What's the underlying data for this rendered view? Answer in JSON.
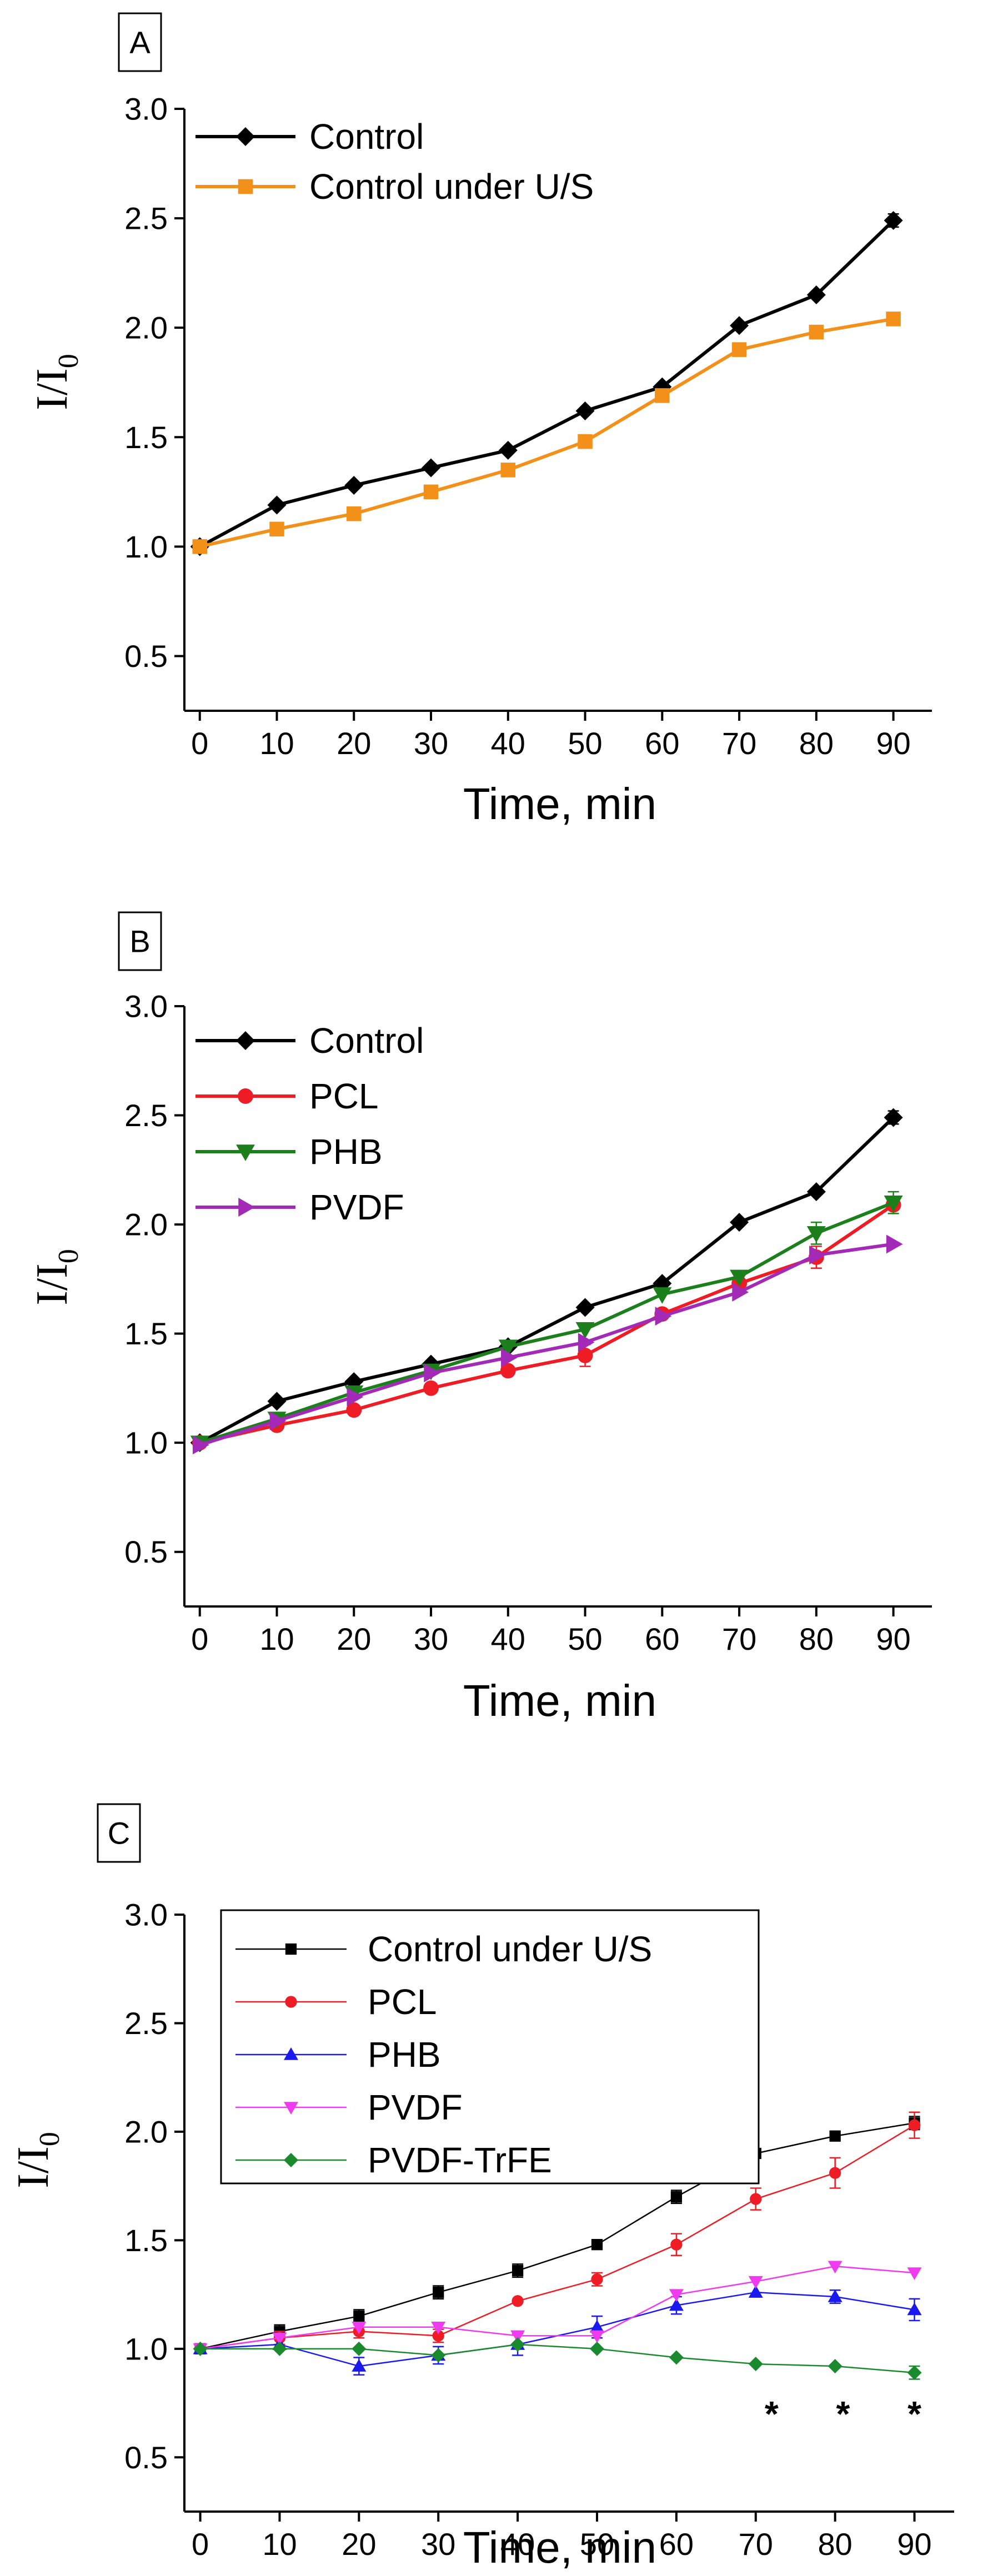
{
  "chart_data": [
    {
      "type": "line",
      "panel_label": "A",
      "xlabel": "Time, min",
      "ylabel": "I/I",
      "ylabel_sub": "0",
      "xlim": [
        -2,
        95
      ],
      "ylim": [
        0.25,
        3.0
      ],
      "xticks": [
        0,
        10,
        20,
        30,
        40,
        50,
        60,
        70,
        80,
        90
      ],
      "yticks": [
        "0.5",
        "1.0",
        "1.5",
        "2.0",
        "2.5",
        "3.0"
      ],
      "legend_position": "top-left",
      "series": [
        {
          "name": "Control",
          "color": "#000000",
          "marker": "diamond",
          "style": "bold",
          "x": [
            0,
            10,
            20,
            30,
            40,
            50,
            60,
            70,
            80,
            90
          ],
          "y": [
            1.0,
            1.19,
            1.28,
            1.36,
            1.44,
            1.62,
            1.73,
            2.01,
            2.15,
            2.49
          ],
          "err": [
            0,
            0,
            0,
            0,
            0,
            0,
            0,
            0,
            0,
            0.03
          ]
        },
        {
          "name": "Control under U/S",
          "color": "#F39019",
          "marker": "square",
          "style": "bold",
          "x": [
            0,
            10,
            20,
            30,
            40,
            50,
            60,
            70,
            80,
            90
          ],
          "y": [
            1.0,
            1.08,
            1.15,
            1.25,
            1.35,
            1.48,
            1.69,
            1.9,
            1.98,
            2.04
          ],
          "err": [
            0,
            0,
            0,
            0,
            0,
            0,
            0,
            0,
            0,
            0
          ]
        }
      ],
      "annotations": []
    },
    {
      "type": "line",
      "panel_label": "B",
      "xlabel": "Time, min",
      "ylabel": "I/I",
      "ylabel_sub": "0",
      "xlim": [
        -2,
        95
      ],
      "ylim": [
        0.25,
        3.0
      ],
      "xticks": [
        0,
        10,
        20,
        30,
        40,
        50,
        60,
        70,
        80,
        90
      ],
      "yticks": [
        "0.5",
        "1.0",
        "1.5",
        "2.0",
        "2.5",
        "3.0"
      ],
      "legend_position": "top-left",
      "series": [
        {
          "name": "Control",
          "color": "#000000",
          "marker": "diamond",
          "style": "bold",
          "x": [
            0,
            10,
            20,
            30,
            40,
            50,
            60,
            70,
            80,
            90
          ],
          "y": [
            1.0,
            1.19,
            1.28,
            1.36,
            1.44,
            1.62,
            1.73,
            2.01,
            2.15,
            2.49
          ],
          "err": [
            0,
            0,
            0,
            0,
            0,
            0,
            0,
            0,
            0,
            0.03
          ]
        },
        {
          "name": "PCL",
          "color": "#EE1C24",
          "marker": "circle",
          "style": "bold",
          "x": [
            0,
            10,
            20,
            30,
            40,
            50,
            60,
            70,
            80,
            90
          ],
          "y": [
            1.0,
            1.08,
            1.15,
            1.25,
            1.33,
            1.4,
            1.59,
            1.73,
            1.85,
            2.09
          ],
          "err": [
            0,
            0,
            0,
            0,
            0,
            0.05,
            0,
            0,
            0.05,
            0
          ]
        },
        {
          "name": "PHB",
          "color": "#1B7F1B",
          "marker": "triangle-down",
          "style": "bold",
          "x": [
            0,
            10,
            20,
            30,
            40,
            50,
            60,
            70,
            80,
            90
          ],
          "y": [
            1.0,
            1.11,
            1.23,
            1.33,
            1.44,
            1.52,
            1.68,
            1.76,
            1.96,
            2.1
          ],
          "err": [
            0,
            0,
            0,
            0,
            0,
            0,
            0,
            0,
            0.05,
            0.05
          ]
        },
        {
          "name": "PVDF",
          "color": "#A22AB7",
          "marker": "triangle-right",
          "style": "bold",
          "x": [
            0,
            10,
            20,
            30,
            40,
            50,
            60,
            70,
            80,
            90
          ],
          "y": [
            0.99,
            1.1,
            1.21,
            1.32,
            1.39,
            1.46,
            1.58,
            1.69,
            1.86,
            1.91
          ],
          "err": [
            0,
            0,
            0,
            0,
            0,
            0,
            0,
            0,
            0,
            0
          ]
        }
      ],
      "annotations": []
    },
    {
      "type": "line",
      "panel_label": "C",
      "xlabel": "Time, min",
      "ylabel": "I/I",
      "ylabel_sub": "0",
      "xlim": [
        -2,
        95
      ],
      "ylim": [
        0.25,
        3.0
      ],
      "xticks": [
        0,
        10,
        20,
        30,
        40,
        50,
        60,
        70,
        80,
        90
      ],
      "yticks": [
        "0.5",
        "1.0",
        "1.5",
        "2.0",
        "2.5",
        "3.0"
      ],
      "legend_position": "top-left (boxed)",
      "series": [
        {
          "name": "Control under U/S",
          "color": "#000000",
          "marker": "square",
          "style": "thin",
          "x": [
            0,
            10,
            20,
            30,
            40,
            50,
            60,
            70,
            80,
            90
          ],
          "y": [
            1.0,
            1.08,
            1.15,
            1.26,
            1.36,
            1.48,
            1.7,
            1.9,
            1.98,
            2.04
          ],
          "err": [
            0,
            0.03,
            0.03,
            0.03,
            0.03,
            0,
            0.03,
            0,
            0,
            0.03
          ]
        },
        {
          "name": "PCL",
          "color": "#EE1C24",
          "marker": "circle",
          "style": "thin",
          "x": [
            0,
            10,
            20,
            30,
            40,
            50,
            60,
            70,
            80,
            90
          ],
          "y": [
            1.0,
            1.05,
            1.08,
            1.06,
            1.22,
            1.32,
            1.48,
            1.69,
            1.81,
            2.03
          ],
          "err": [
            0,
            0.03,
            0.03,
            0.03,
            0,
            0.03,
            0.05,
            0.05,
            0.07,
            0.06
          ]
        },
        {
          "name": "PHB",
          "color": "#1A1AEE",
          "marker": "triangle-up",
          "style": "thin",
          "x": [
            0,
            10,
            20,
            30,
            40,
            50,
            60,
            70,
            80,
            90
          ],
          "y": [
            1.0,
            1.02,
            0.92,
            0.97,
            1.02,
            1.1,
            1.2,
            1.26,
            1.24,
            1.18
          ],
          "err": [
            0,
            0,
            0.04,
            0.04,
            0.05,
            0.05,
            0.04,
            0,
            0.03,
            0.05
          ]
        },
        {
          "name": "PVDF",
          "color": "#F03AF0",
          "marker": "triangle-down",
          "style": "thin",
          "x": [
            0,
            10,
            20,
            30,
            40,
            50,
            60,
            70,
            80,
            90
          ],
          "y": [
            1.0,
            1.05,
            1.1,
            1.1,
            1.06,
            1.06,
            1.25,
            1.31,
            1.38,
            1.35
          ],
          "err": [
            0,
            0,
            0,
            0,
            0,
            0,
            0,
            0,
            0,
            0
          ]
        },
        {
          "name": "PVDF-TrFE",
          "color": "#1B8A2E",
          "marker": "diamond",
          "style": "thin",
          "x": [
            0,
            10,
            20,
            30,
            40,
            50,
            60,
            70,
            80,
            90
          ],
          "y": [
            1.0,
            1.0,
            1.0,
            0.97,
            1.02,
            1.0,
            0.96,
            0.93,
            0.92,
            0.89
          ],
          "err": [
            0,
            0,
            0,
            0,
            0,
            0,
            0,
            0,
            0,
            0.03
          ]
        }
      ],
      "annotations": [
        {
          "text": "*",
          "x": 72,
          "y": 0.7
        },
        {
          "text": "*",
          "x": 81,
          "y": 0.7
        },
        {
          "text": "*",
          "x": 90,
          "y": 0.7
        }
      ]
    }
  ]
}
